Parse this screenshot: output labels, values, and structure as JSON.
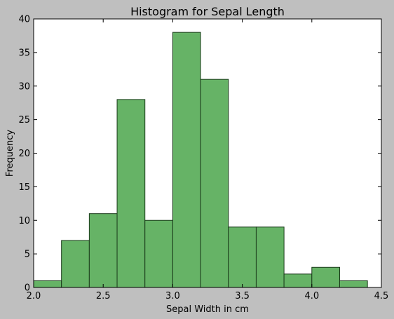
{
  "chart_data": {
    "type": "bar",
    "title": "Histogram for Sepal Length",
    "xlabel": "Sepal Width in cm",
    "ylabel": "Frequency",
    "xlim": [
      2.0,
      4.5
    ],
    "ylim": [
      0,
      40
    ],
    "xticks": [
      "2.0",
      "2.5",
      "3.0",
      "3.5",
      "4.0",
      "4.5"
    ],
    "yticks": [
      "0",
      "5",
      "10",
      "15",
      "20",
      "25",
      "30",
      "35",
      "40"
    ],
    "bins": [
      {
        "start": 2.0,
        "end": 2.2,
        "value": 1
      },
      {
        "start": 2.2,
        "end": 2.4,
        "value": 7
      },
      {
        "start": 2.4,
        "end": 2.6,
        "value": 11
      },
      {
        "start": 2.6,
        "end": 2.8,
        "value": 28
      },
      {
        "start": 2.8,
        "end": 3.0,
        "value": 10
      },
      {
        "start": 3.0,
        "end": 3.2,
        "value": 38
      },
      {
        "start": 3.2,
        "end": 3.4,
        "value": 31
      },
      {
        "start": 3.4,
        "end": 3.6,
        "value": 9
      },
      {
        "start": 3.6,
        "end": 3.8,
        "value": 9
      },
      {
        "start": 3.8,
        "end": 4.0,
        "value": 2
      },
      {
        "start": 4.0,
        "end": 4.2,
        "value": 3
      },
      {
        "start": 4.2,
        "end": 4.4,
        "value": 1
      }
    ],
    "grid": false,
    "legend": "none",
    "bar_color": "#66b366",
    "bar_edge_color": "#1a3a1a",
    "axes_background": "#ffffff",
    "figure_background": "#bfbfbf"
  }
}
